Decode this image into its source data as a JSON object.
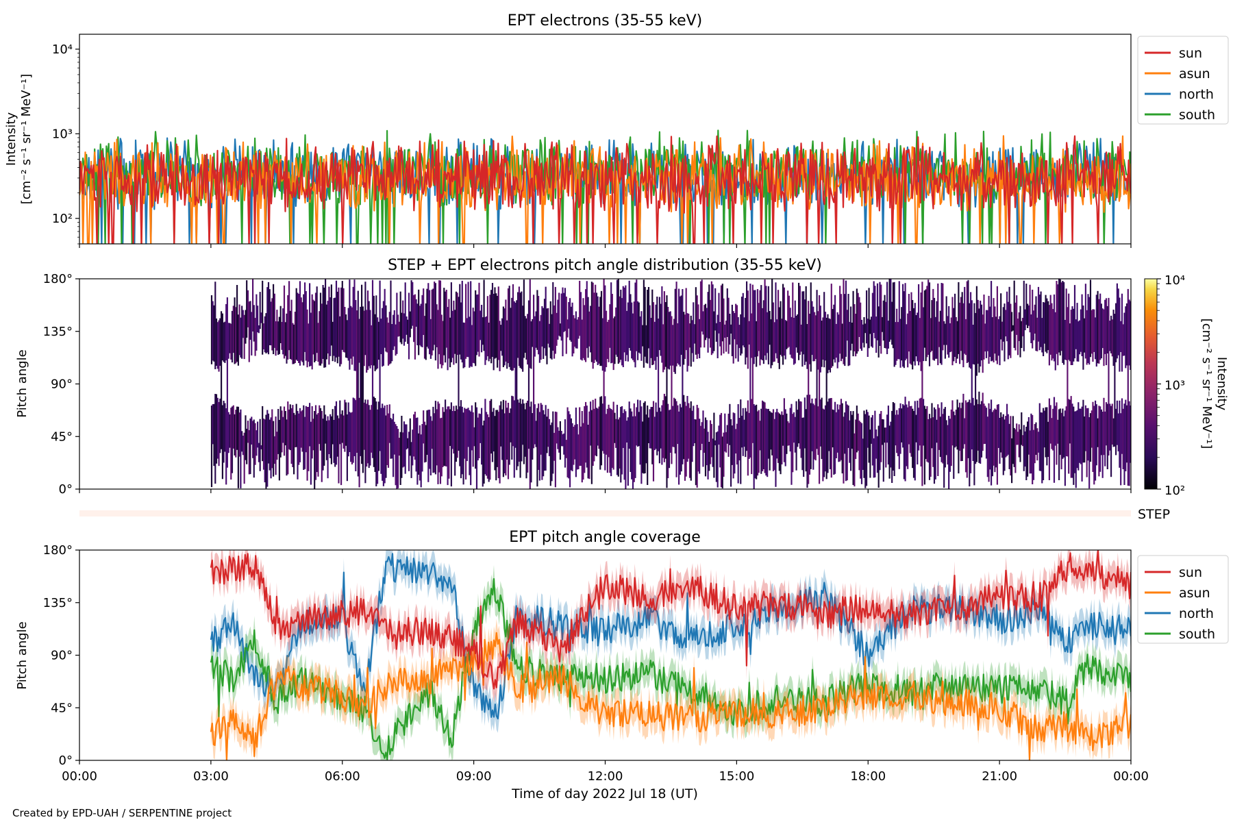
{
  "footer": "Created by EPD-UAH / SERPENTINE project",
  "colors": {
    "sun": "#d62728",
    "asun": "#ff7f0e",
    "north": "#1f77b4",
    "south": "#2ca02c"
  },
  "chart_data": [
    {
      "type": "line",
      "title": "EPT electrons (35-55 keV)",
      "ylabel": [
        "Intensity",
        "[cm⁻² s⁻¹ sr⁻¹ MeV⁻¹]"
      ],
      "yscale": "log",
      "ylim": [
        50,
        15000
      ],
      "yticks": [
        {
          "value": 100,
          "label": "10²"
        },
        {
          "value": 1000,
          "label": "10³"
        },
        {
          "value": 10000,
          "label": "10⁴"
        }
      ],
      "xlim": [
        0,
        24
      ],
      "legend": {
        "placement": "outside-right",
        "entries": [
          "sun",
          "asun",
          "north",
          "south"
        ]
      },
      "series": [
        {
          "name": "sun",
          "color": "#d62728",
          "typical": 300,
          "max": 950
        },
        {
          "name": "asun",
          "color": "#ff7f0e",
          "typical": 300,
          "max": 950
        },
        {
          "name": "north",
          "color": "#1f77b4",
          "typical": 330,
          "max": 900
        },
        {
          "name": "south",
          "color": "#2ca02c",
          "typical": 360,
          "max": 1100
        }
      ]
    },
    {
      "type": "heatmap",
      "title": "STEP + EPT electrons pitch angle distribution (35-55 keV)",
      "ylabel": "Pitch angle",
      "ylim": [
        0,
        180
      ],
      "yticks": [
        "0°",
        "45°",
        "90°",
        "135°",
        "180°"
      ],
      "xlim": [
        0,
        24
      ],
      "data_start_hour": 3,
      "colorbar": {
        "label": [
          "Intensity",
          "[cm⁻² s⁻¹ sr⁻¹ MeV⁻¹]"
        ],
        "scale": "log",
        "range": [
          100,
          10000
        ],
        "ticks": [
          "10²",
          "10³",
          "10⁴"
        ],
        "colormap": "inferno"
      },
      "strip_label": "STEP"
    },
    {
      "type": "line",
      "title": "EPT pitch angle coverage",
      "ylabel": "Pitch angle",
      "ylim": [
        0,
        180
      ],
      "yticks": [
        "0°",
        "45°",
        "90°",
        "135°",
        "180°"
      ],
      "xlabel": "Time of day 2022 Jul 18 (UT)",
      "xticks": [
        "00:00",
        "03:00",
        "06:00",
        "09:00",
        "12:00",
        "15:00",
        "18:00",
        "21:00",
        "00:00"
      ],
      "xlim": [
        0,
        24
      ],
      "legend": {
        "placement": "outside-right",
        "entries": [
          "sun",
          "asun",
          "north",
          "south"
        ]
      },
      "series": [
        {
          "name": "sun",
          "color": "#d62728",
          "x": [
            3,
            4,
            4.5,
            6,
            6.5,
            7,
            8,
            9,
            9.5,
            10,
            11,
            12,
            13,
            14,
            15,
            16,
            17,
            18,
            19,
            20,
            21,
            22,
            22.5,
            23,
            24
          ],
          "y": [
            160,
            165,
            115,
            125,
            130,
            110,
            110,
            95,
            65,
            120,
            95,
            150,
            140,
            150,
            130,
            135,
            125,
            130,
            125,
            130,
            140,
            140,
            165,
            165,
            150
          ]
        },
        {
          "name": "asun",
          "color": "#ff7f0e",
          "x": [
            3,
            3.5,
            4,
            4.5,
            6,
            6.5,
            7,
            8,
            9,
            9.5,
            10,
            11,
            12,
            13,
            14,
            15,
            16,
            17,
            18,
            19,
            20,
            21,
            22,
            22.5,
            23,
            24
          ],
          "y": [
            20,
            40,
            15,
            70,
            55,
            45,
            65,
            70,
            85,
            100,
            60,
            70,
            40,
            40,
            35,
            40,
            40,
            45,
            55,
            55,
            50,
            45,
            25,
            30,
            20,
            30
          ]
        },
        {
          "name": "north",
          "color": "#1f77b4",
          "x": [
            3,
            3.5,
            4,
            4.5,
            5,
            6,
            6.5,
            7,
            8,
            8.5,
            9,
            9.5,
            10,
            11,
            12,
            13,
            14,
            15,
            16,
            17,
            18,
            19,
            20,
            21,
            22,
            22.5,
            23,
            24
          ],
          "y": [
            100,
            115,
            70,
            60,
            115,
            120,
            60,
            165,
            160,
            150,
            60,
            35,
            125,
            115,
            110,
            120,
            105,
            115,
            130,
            140,
            90,
            130,
            130,
            120,
            130,
            100,
            115,
            110
          ]
        },
        {
          "name": "south",
          "color": "#2ca02c",
          "x": [
            3,
            3.5,
            4,
            4.5,
            5,
            6,
            6.5,
            7,
            8,
            8.5,
            9,
            9.5,
            10,
            11,
            12,
            13,
            14,
            15,
            16,
            17,
            18,
            19,
            20,
            21,
            22,
            22.5,
            23,
            24
          ],
          "y": [
            80,
            70,
            100,
            50,
            70,
            55,
            45,
            10,
            60,
            20,
            110,
            150,
            80,
            70,
            70,
            75,
            60,
            40,
            55,
            50,
            65,
            60,
            65,
            60,
            60,
            50,
            80,
            70
          ]
        }
      ]
    }
  ]
}
